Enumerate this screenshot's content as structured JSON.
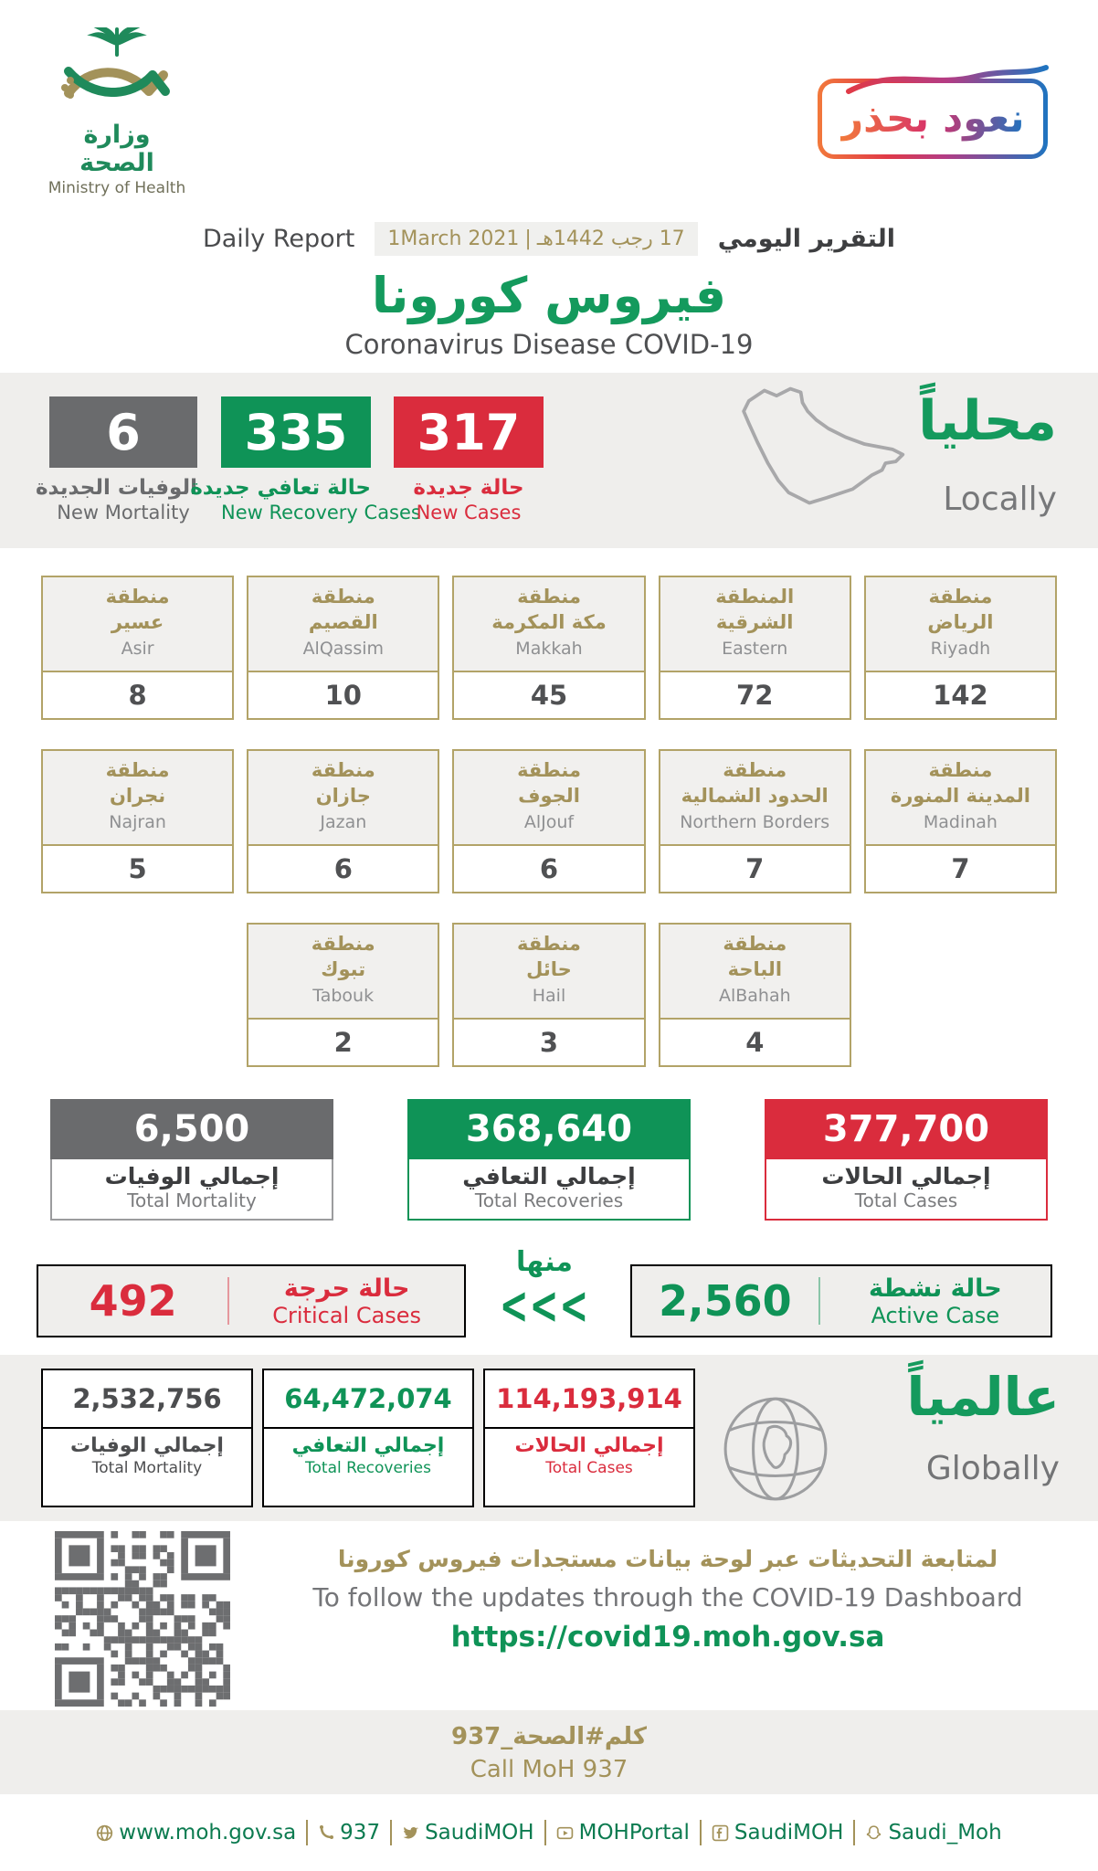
{
  "colors": {
    "green": "#0F9357",
    "red": "#DA2C3D",
    "gray": "#6A6B6D",
    "gold": "#A3925A",
    "band_bg": "#EFEEEC",
    "footer_green": "#0C7B50"
  },
  "logo": {
    "title_ar": "وزارة الصحة",
    "title_en": "Ministry of Health"
  },
  "badge": {
    "text": "نعود بحذر"
  },
  "report": {
    "label_en": "Daily Report",
    "date_greg": "1March 2021",
    "date_sep": "|",
    "date_hijri": "17 رجب 1442هـ",
    "label_ar": "التقرير اليومي",
    "title_ar": "فيروس كورونا",
    "title_en": "Coronavirus Disease COVID-19"
  },
  "locally": {
    "heading_ar": "محلياً",
    "heading_en": "Locally",
    "new_mortality": {
      "value": "6",
      "label_ar": "الوفيات الجديدة",
      "label_en": "New Mortality"
    },
    "new_recovery": {
      "value": "335",
      "label_ar": "حالة تعافي جديدة",
      "label_en": "New Recovery Cases"
    },
    "new_cases": {
      "value": "317",
      "label_ar": "حالة جديدة",
      "label_en": "New Cases"
    }
  },
  "regions": {
    "row1": [
      {
        "ar1": "منطقة",
        "ar2": "عسير",
        "en": "Asir",
        "value": "8"
      },
      {
        "ar1": "منطقة",
        "ar2": "القصيم",
        "en": "AlQassim",
        "value": "10"
      },
      {
        "ar1": "منطقة",
        "ar2": "مكة المكرمة",
        "en": "Makkah",
        "value": "45"
      },
      {
        "ar1": "المنطقة",
        "ar2": "الشرقية",
        "en": "Eastern",
        "value": "72"
      },
      {
        "ar1": "منطقة",
        "ar2": "الرياض",
        "en": "Riyadh",
        "value": "142"
      }
    ],
    "row2": [
      {
        "ar1": "منطقة",
        "ar2": "نجران",
        "en": "Najran",
        "value": "5"
      },
      {
        "ar1": "منطقة",
        "ar2": "جازان",
        "en": "Jazan",
        "value": "6"
      },
      {
        "ar1": "منطقة",
        "ar2": "الجوف",
        "en": "AlJouf",
        "value": "6"
      },
      {
        "ar1": "منطقة",
        "ar2": "الحدود الشمالية",
        "en": "Northern Borders",
        "value": "7"
      },
      {
        "ar1": "منطقة",
        "ar2": "المدينة المنورة",
        "en": "Madinah",
        "value": "7"
      }
    ],
    "row3": [
      {
        "ar1": "منطقة",
        "ar2": "تبوك",
        "en": "Tabouk",
        "value": "2"
      },
      {
        "ar1": "منطقة",
        "ar2": "حائل",
        "en": "Hail",
        "value": "3"
      },
      {
        "ar1": "منطقة",
        "ar2": "الباحة",
        "en": "AlBahah",
        "value": "4"
      }
    ]
  },
  "totals": {
    "mortality": {
      "value": "6,500",
      "label_ar": "إجمالي الوفيات",
      "label_en": "Total Mortality"
    },
    "recoveries": {
      "value": "368,640",
      "label_ar": "إجمالي التعافي",
      "label_en": "Total Recoveries"
    },
    "cases": {
      "value": "377,700",
      "label_ar": "إجمالي الحالات",
      "label_en": "Total Cases"
    }
  },
  "breakdown": {
    "critical": {
      "value": "492",
      "label_ar": "حالة حرجة",
      "label_en": "Critical Cases"
    },
    "of_which_ar": "منها",
    "arrows": "<<<",
    "active": {
      "value": "2,560",
      "label_ar": "حالة نشطة",
      "label_en": "Active Case"
    }
  },
  "globally": {
    "heading_ar": "عالمياً",
    "heading_en": "Globally",
    "mortality": {
      "value": "2,532,756",
      "label_ar": "إجمالي الوفيات",
      "label_en": "Total Mortality"
    },
    "recoveries": {
      "value": "64,472,074",
      "label_ar": "إجمالي التعافي",
      "label_en": "Total Recoveries"
    },
    "cases": {
      "value": "114,193,914",
      "label_ar": "إجمالي الحالات",
      "label_en": "Total Cases"
    }
  },
  "dashboard": {
    "line_ar": "لمتابعة التحديثات عبر لوحة بيانات مستجدات فيروس كورونا",
    "line_en": "To follow the updates through the COVID-19 Dashboard",
    "url": "https://covid19.moh.gov.sa"
  },
  "call_moh": {
    "ar": "كلم#الصحة_937",
    "en": "Call MoH 937"
  },
  "footer": {
    "website": "www.moh.gov.sa",
    "phone": "937",
    "twitter": "SaudiMOH",
    "youtube": "MOHPortal",
    "facebook": "SaudiMOH",
    "snapchat": "Saudi_Moh"
  }
}
